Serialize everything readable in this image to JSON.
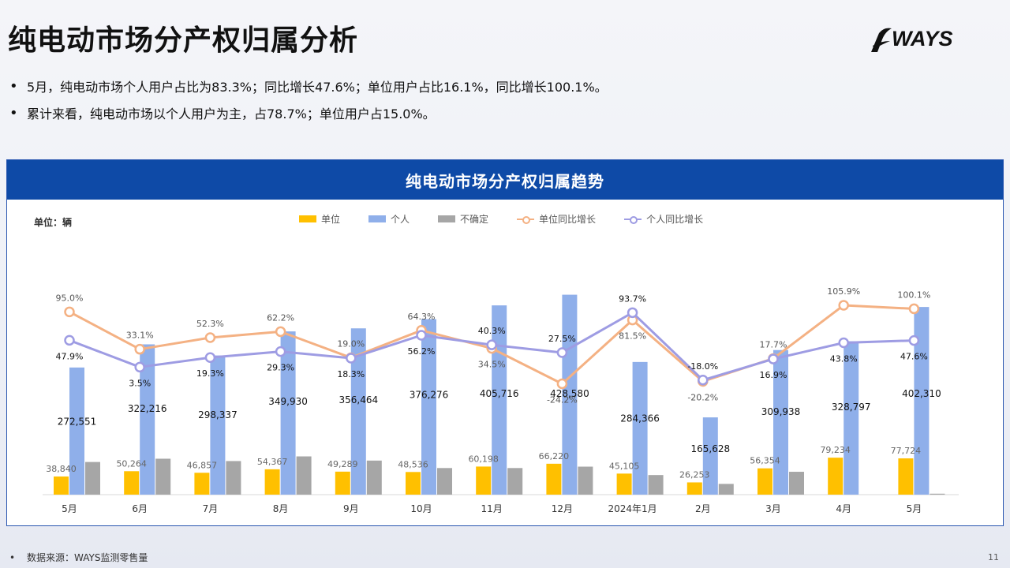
{
  "title": "纯电动市场分产权归属分析",
  "logo": {
    "text": "WAYS",
    "icon": "ways-swoosh-icon"
  },
  "bullets": [
    "5月，纯电动市场个人用户占比为83.3%；同比增长47.6%；单位用户占比16.1%，同比增长100.1%。",
    "累计来看，纯电动市场以个人用户为主，占78.7%；单位用户占15.0%。"
  ],
  "footer": {
    "source": "数据来源：WAYS监测零售量"
  },
  "page_number": "11",
  "colors": {
    "unit": "#FFC000",
    "personal": "#8FAFEA",
    "unsure": "#A6A6A6",
    "unit_growth": "#F4B183",
    "personal_growth": "#9E9CE3",
    "header": "#0E4AA7"
  },
  "chart_data": {
    "type": "bar",
    "title": "纯电动市场分产权归属趋势",
    "unit_label": "单位：辆",
    "categories": [
      "5月",
      "6月",
      "7月",
      "8月",
      "9月",
      "10月",
      "11月",
      "12月",
      "2024年1月",
      "2月",
      "3月",
      "4月",
      "5月"
    ],
    "series": [
      {
        "name": "单位",
        "kind": "bar",
        "values": [
          38840,
          50264,
          46857,
          54367,
          49289,
          48536,
          60198,
          66220,
          45105,
          26253,
          56354,
          79234,
          77724
        ]
      },
      {
        "name": "个人",
        "kind": "bar",
        "values": [
          272551,
          322216,
          298337,
          349930,
          356464,
          376276,
          405716,
          428580,
          284366,
          165628,
          309938,
          328797,
          402310
        ]
      },
      {
        "name": "不确定",
        "kind": "bar",
        "values": [
          70000,
          77000,
          72000,
          82000,
          73000,
          57000,
          57000,
          60000,
          42000,
          23000,
          49000,
          0,
          2000
        ]
      },
      {
        "name": "单位同比增长",
        "kind": "line",
        "values": [
          95.0,
          33.1,
          52.3,
          62.2,
          19.0,
          64.3,
          34.5,
          -24.2,
          81.5,
          -20.2,
          17.7,
          105.9,
          100.1
        ]
      },
      {
        "name": "个人同比增长",
        "kind": "line",
        "values": [
          47.9,
          3.5,
          19.3,
          29.3,
          18.3,
          56.2,
          40.3,
          27.5,
          93.7,
          -18.0,
          16.9,
          43.8,
          47.6
        ]
      }
    ],
    "legend_position": "top",
    "grid": false
  }
}
